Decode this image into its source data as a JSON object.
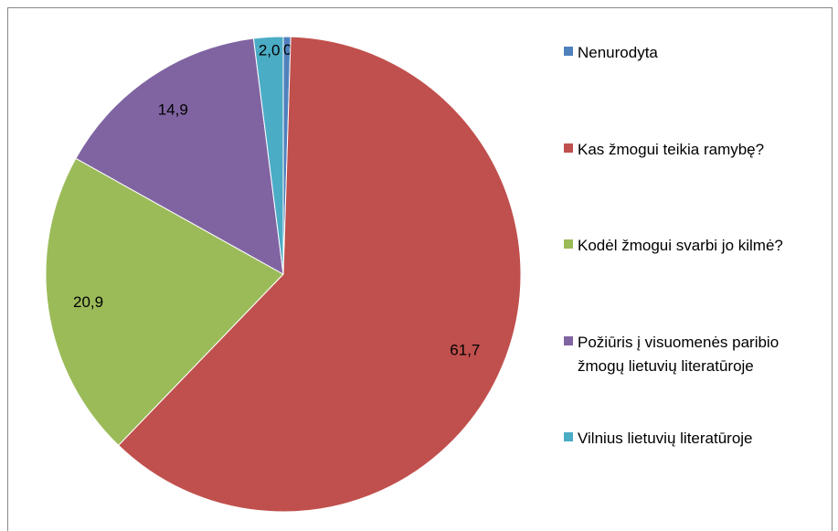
{
  "chart_data": {
    "type": "pie",
    "categories": [
      "Nenurodyta",
      "Kas žmogui teikia ramybę?",
      "Kodėl žmogui svarbi jo kilmė?",
      "Požiūris į visuomenės paribio žmogų lietuvių literatūroje",
      "Vilnius lietuvių literatūroje"
    ],
    "values": [
      0.5,
      61.7,
      20.9,
      14.9,
      2.0
    ],
    "value_labels": [
      "0,5",
      "61,7",
      "20,9",
      "14,9",
      "2,0"
    ],
    "colors": [
      "#4f81bd",
      "#c0504d",
      "#9bbb59",
      "#8064a2",
      "#4bacc6"
    ],
    "legend": "right"
  }
}
